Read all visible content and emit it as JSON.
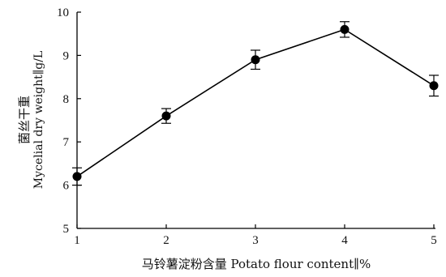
{
  "chart_data": {
    "type": "line",
    "xlabel": "马铃薯淀粉含量 Potato flour content∥%",
    "ylabel_cn": "菌丝干重",
    "ylabel_en": "Mycelial dry weight∥g/L",
    "x": [
      1,
      2,
      3,
      4,
      5
    ],
    "series": [
      {
        "values": [
          6.2,
          7.6,
          8.9,
          9.6,
          8.3
        ],
        "errors": [
          0.2,
          0.17,
          0.22,
          0.18,
          0.24
        ]
      }
    ],
    "xlim": [
      1,
      5
    ],
    "ylim": [
      5,
      10
    ],
    "x_ticks": [
      "1",
      "2",
      "3",
      "4",
      "5"
    ],
    "y_ticks": [
      "5",
      "6",
      "7",
      "8",
      "9",
      "10"
    ],
    "grid": false,
    "legend": "none",
    "line_color": "#000000",
    "marker_color": "#000000"
  }
}
